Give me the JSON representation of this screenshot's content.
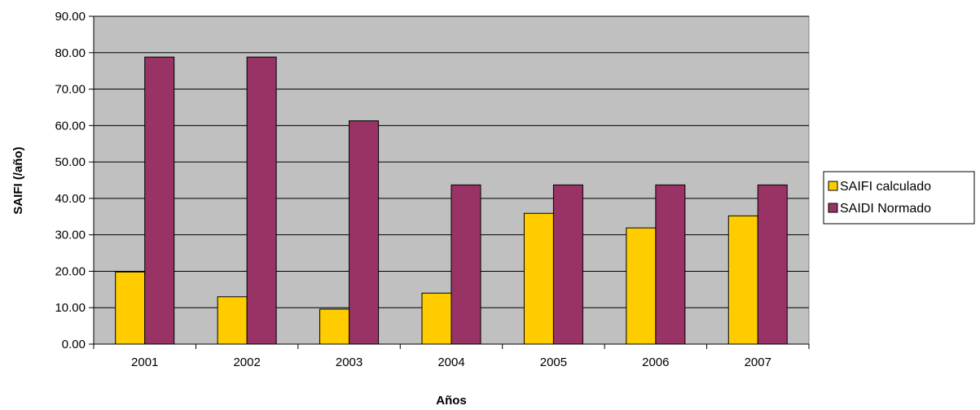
{
  "chart_data": {
    "type": "bar",
    "title": "",
    "xlabel": "Años",
    "ylabel": "SAIFI (/año)",
    "categories": [
      "2001",
      "2002",
      "2003",
      "2004",
      "2005",
      "2006",
      "2007"
    ],
    "series": [
      {
        "name": "SAIFI calculado",
        "color": "#FFCC00",
        "values": [
          19.8,
          13.0,
          9.6,
          14.0,
          35.9,
          31.9,
          35.2
        ]
      },
      {
        "name": "SAIDI Normado",
        "color": "#993366",
        "values": [
          78.8,
          78.8,
          61.3,
          43.7,
          43.7,
          43.7,
          43.7
        ]
      }
    ],
    "ylim": [
      0,
      90
    ],
    "yticks": [
      "0.00",
      "10.00",
      "20.00",
      "30.00",
      "40.00",
      "50.00",
      "60.00",
      "70.00",
      "80.00",
      "90.00"
    ],
    "grid": true,
    "plot_background": "#C0C0C0",
    "legend_position": "right"
  }
}
